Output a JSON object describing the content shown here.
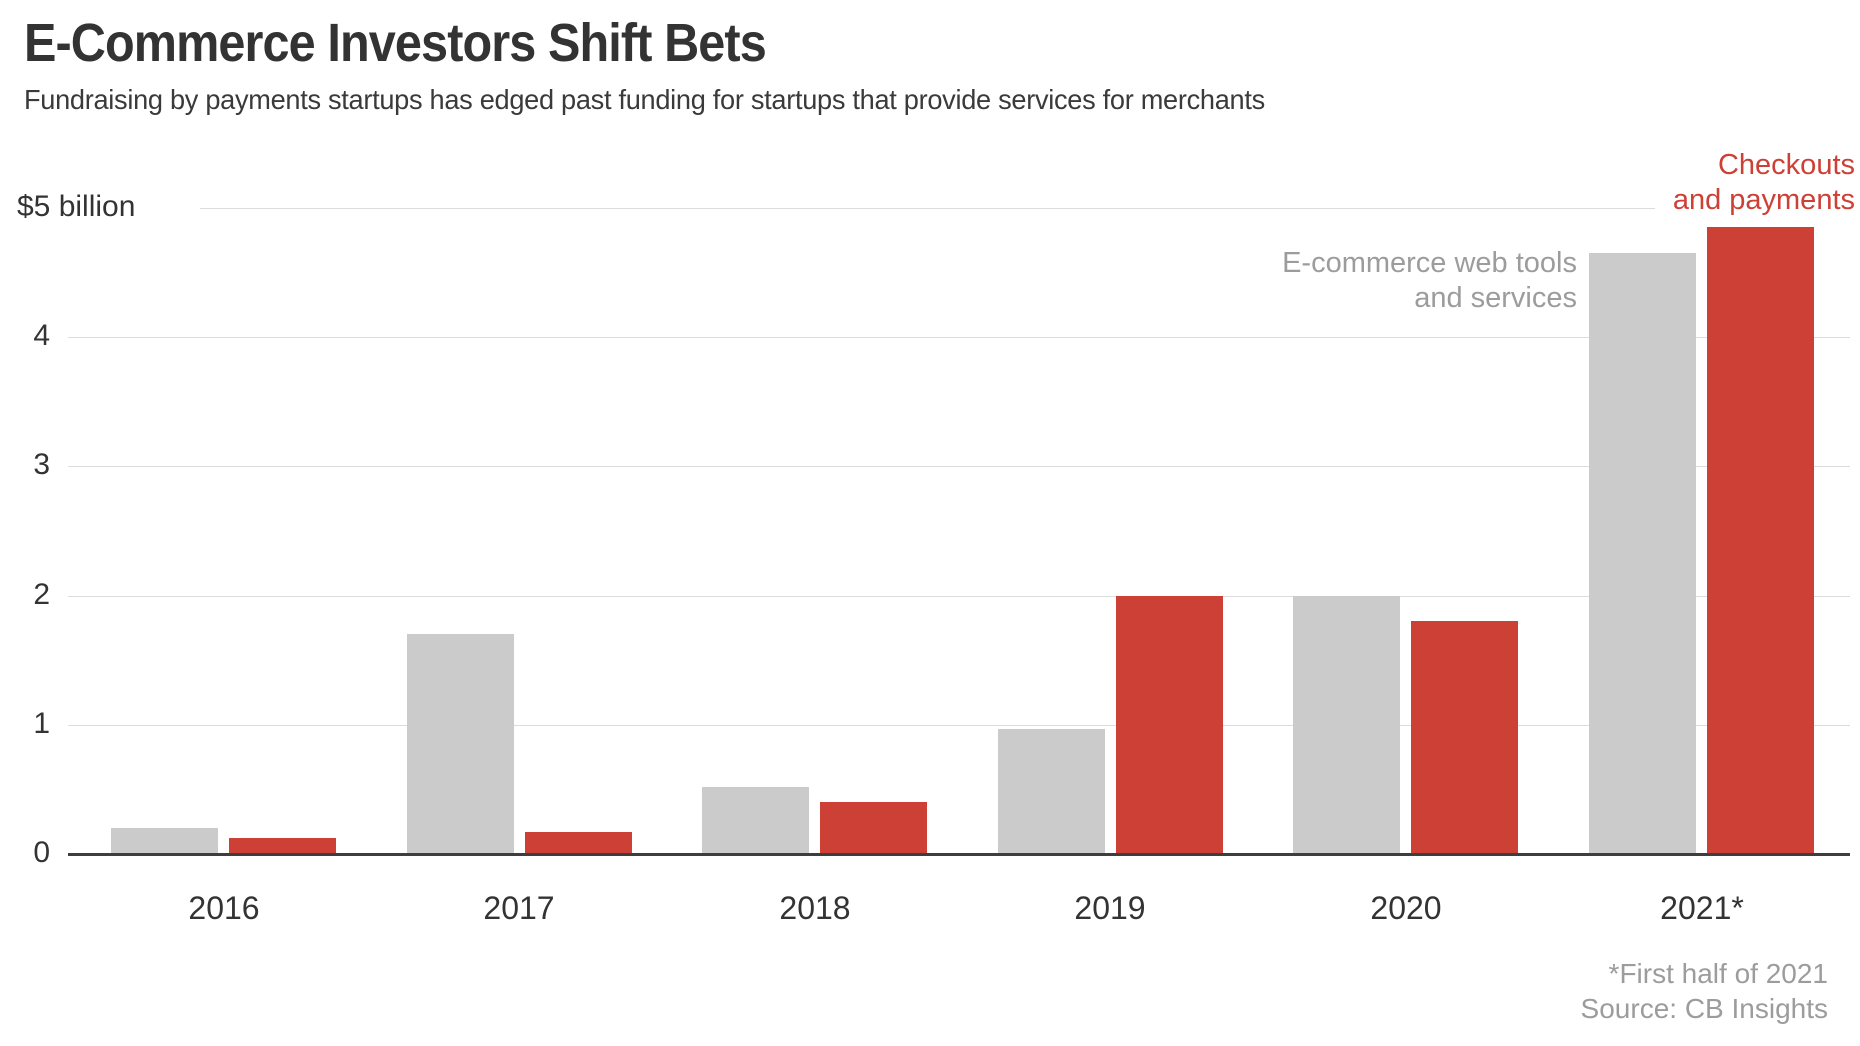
{
  "header": {
    "title": "E-Commerce Investors Shift Bets",
    "subtitle": "Fundraising by payments startups has edged past funding for startups that provide services for merchants"
  },
  "chart_data": {
    "type": "bar",
    "title": "E-Commerce Investors Shift Bets",
    "subtitle": "Fundraising by payments startups has edged past funding for startups that provide services for merchants",
    "categories": [
      "2016",
      "2017",
      "2018",
      "2019",
      "2020",
      "2021*"
    ],
    "series": [
      {
        "name": "E-commerce web tools and services",
        "label_lines": [
          "E-commerce web tools",
          "and services"
        ],
        "color": "#cbcbcb",
        "values": [
          0.2,
          1.7,
          0.52,
          0.97,
          2.0,
          4.65
        ]
      },
      {
        "name": "Checkouts and payments",
        "label_lines": [
          "Checkouts",
          "and payments"
        ],
        "color": "#cd4036",
        "values": [
          0.12,
          0.17,
          0.4,
          2.0,
          1.8,
          4.85
        ]
      }
    ],
    "y_top_label": "$5 billion",
    "yticks": [
      "0",
      "1",
      "2",
      "3",
      "4"
    ],
    "ylim": [
      0,
      5
    ],
    "unit": "billions of US dollars",
    "grid": true,
    "legend_position": "direct-labels-on-chart"
  },
  "footnote": {
    "line1": "*First half of 2021",
    "line2": "Source: CB Insights"
  },
  "colors": {
    "bar_gray": "#cbcbcb",
    "bar_red": "#cd4036",
    "gridline": "#dcdcdc",
    "axis": "#3e3e3e",
    "text_dark": "#333333",
    "text_muted": "#9c9c9c"
  }
}
